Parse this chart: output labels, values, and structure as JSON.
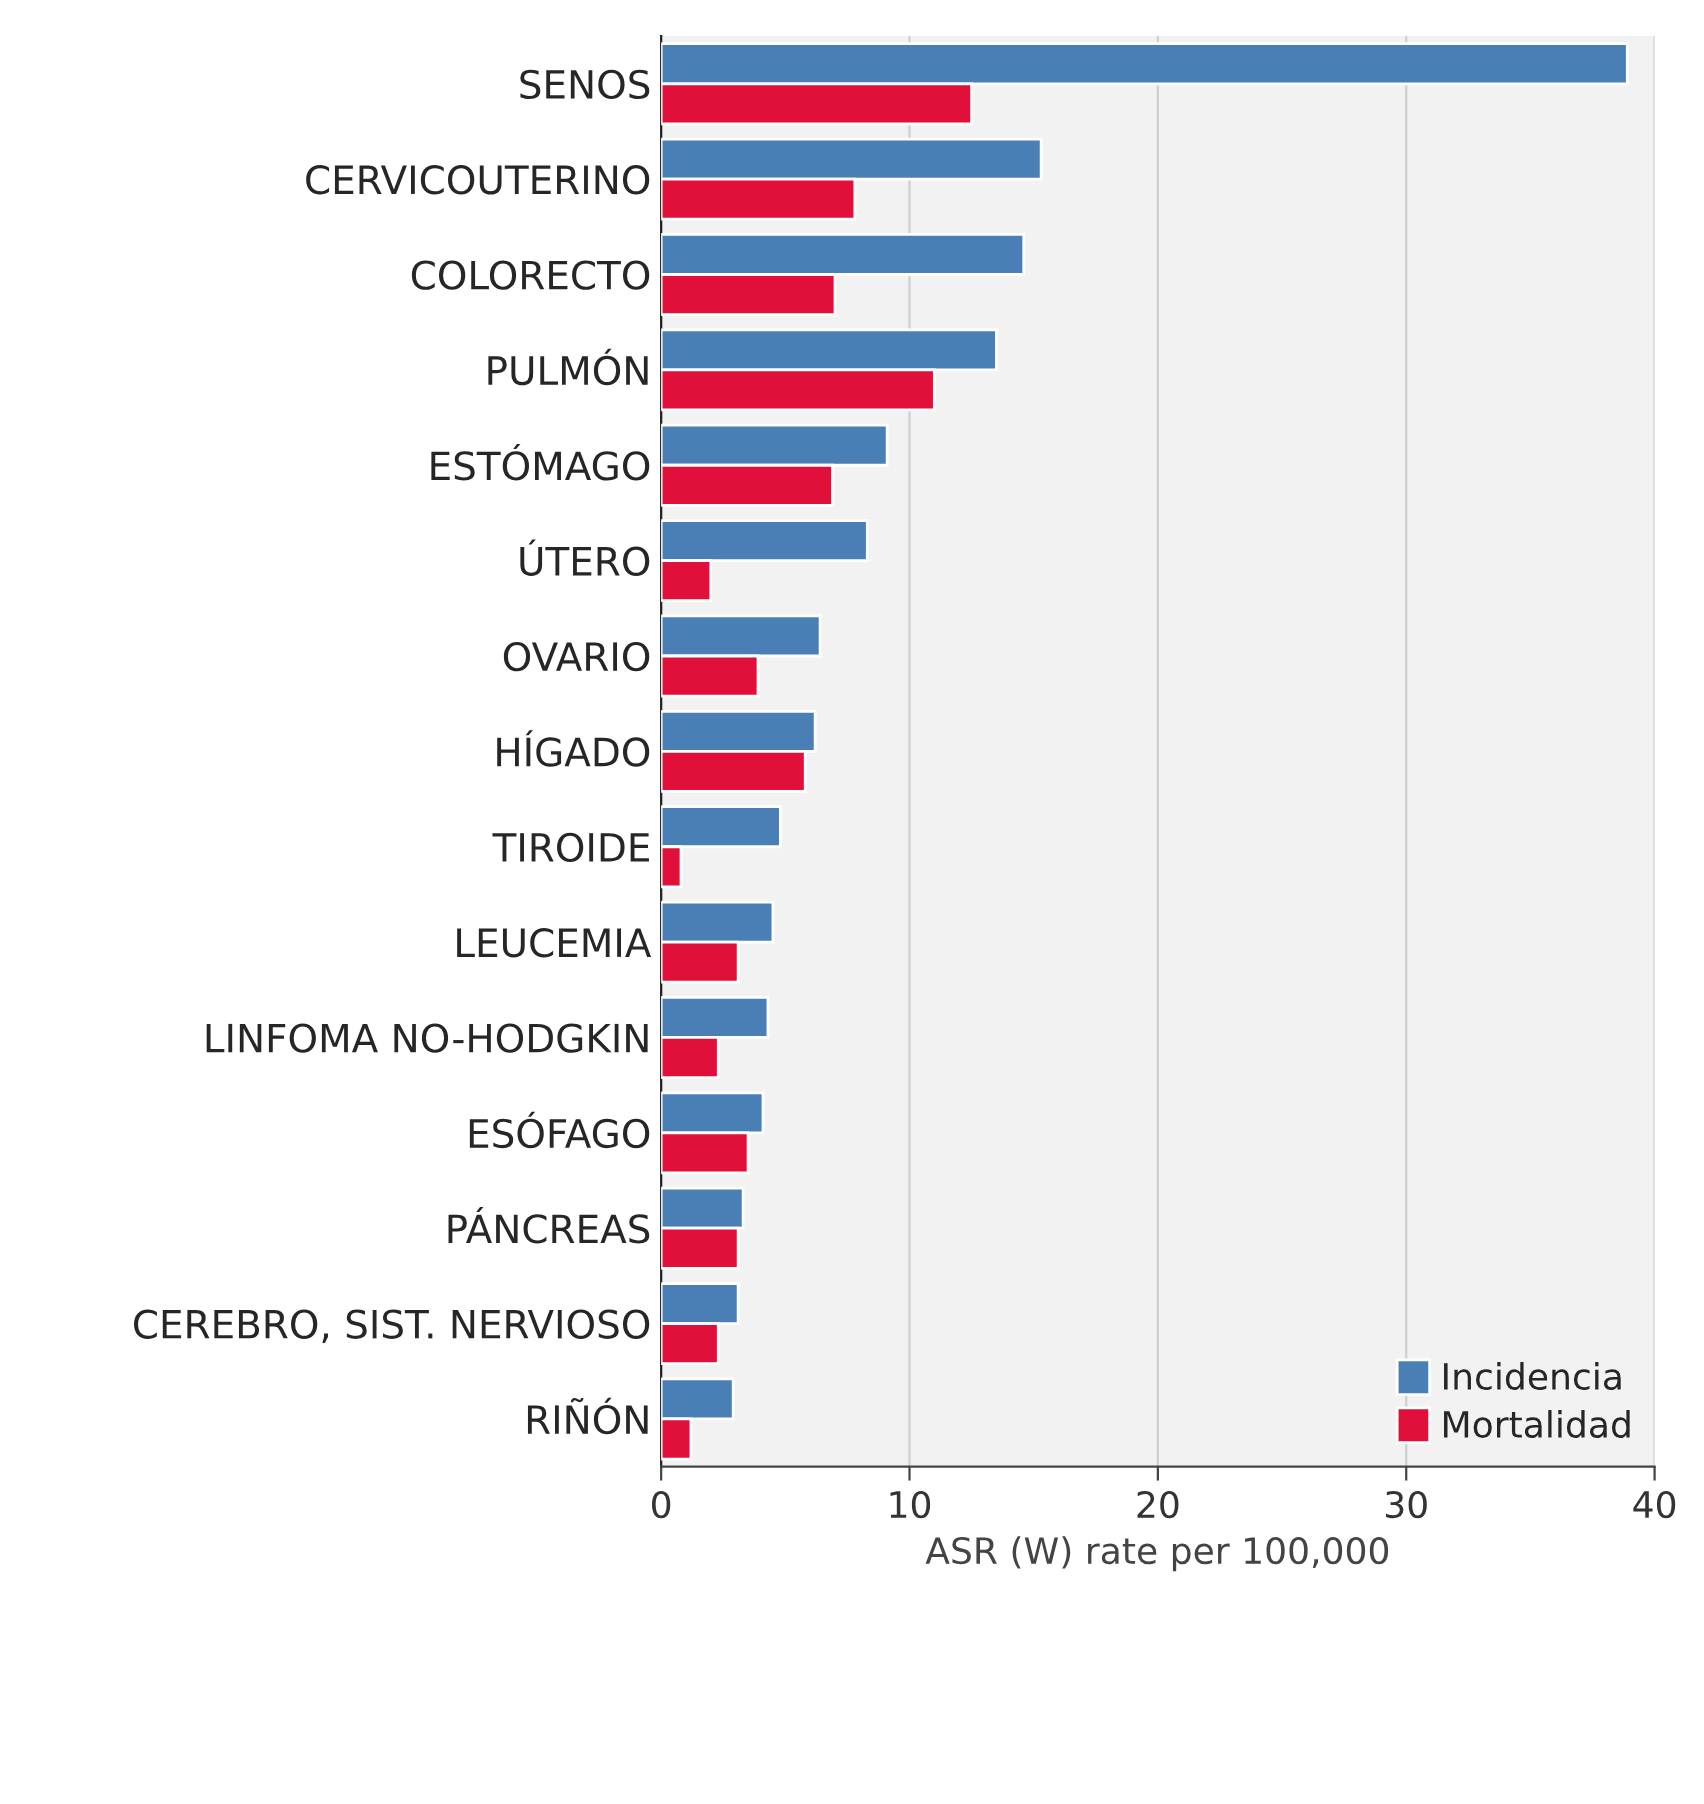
{
  "chart_data": {
    "type": "bar",
    "orientation": "horizontal",
    "xlabel": "ASR (W) rate per 100,000",
    "categories": [
      "SENOS",
      "CERVICOUTERINO",
      "COLORECTO",
      "PULMÓN",
      "ESTÓMAGO",
      "ÚTERO",
      "OVARIO",
      "HÍGADO",
      "TIROIDE",
      "LEUCEMIA",
      "LINFOMA NO-HODGKIN",
      "ESÓFAGO",
      "PÁNCREAS",
      "CEREBRO, SIST. NERVIOSO",
      "RIÑÓN"
    ],
    "series": [
      {
        "name": "Incidencia",
        "color": "#4a7fb5",
        "values": [
          38.9,
          15.3,
          14.6,
          13.5,
          9.1,
          8.3,
          6.4,
          6.2,
          4.8,
          4.5,
          4.3,
          4.1,
          3.3,
          3.1,
          2.9
        ]
      },
      {
        "name": "Mortalidad",
        "color": "#e0103a",
        "values": [
          12.5,
          7.8,
          7.0,
          11.0,
          6.9,
          2.0,
          3.9,
          5.8,
          0.8,
          3.1,
          2.3,
          3.5,
          3.1,
          2.3,
          1.2
        ]
      }
    ],
    "xlim": [
      0,
      40
    ],
    "xticks": [
      0,
      10,
      20,
      30,
      40
    ],
    "grid": "x",
    "legend": "bottom right"
  }
}
